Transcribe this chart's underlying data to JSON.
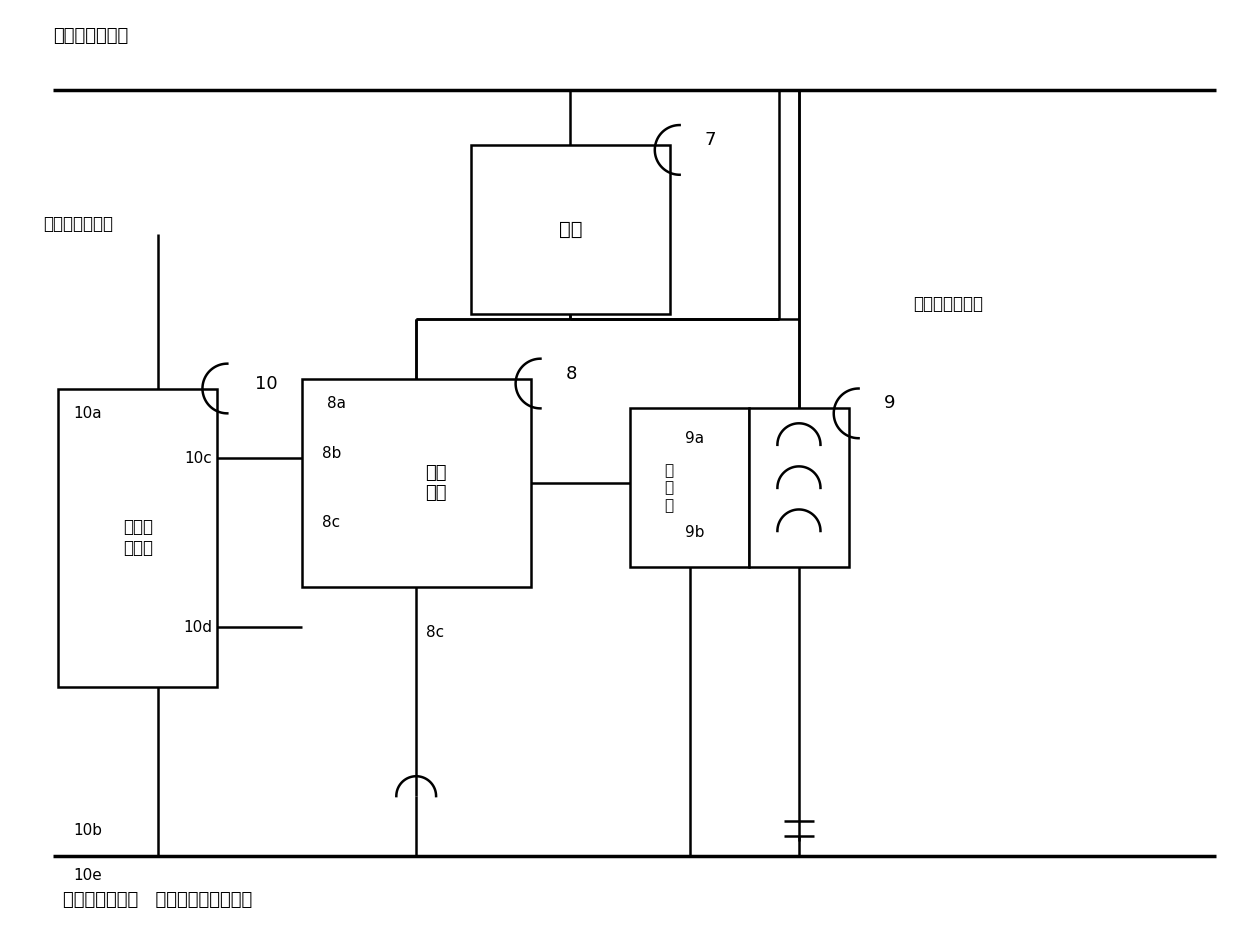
{
  "bg": "#ffffff",
  "lc": "#000000",
  "lw": 1.8,
  "tlw": 2.5,
  "fw": 12.4,
  "fh": 9.48,
  "top_label": "第一外接电源＋",
  "bot_label": "第一外接电源－   （第二外接电源－）",
  "lbl2L": "第二外接电源＋",
  "lbl2R": "第二外接电源＋",
  "load_txt": "负载",
  "sw_txt": "开关\n电路",
  "drv_txt": "单源驱\n动电路",
  "relay_txt": "继\n电\n器",
  "ref7": "7",
  "ref8": "8",
  "ref9": "9",
  "ref10": "10",
  "lbl8a": "8a",
  "lbl8b": "8b",
  "lbl8c": "8c",
  "lbl9a": "9a",
  "lbl9b": "9b",
  "lbl10a": "10a",
  "lbl10b": "10b",
  "lbl10c": "10c",
  "lbl10d": "10d",
  "lbl10e": "10e"
}
